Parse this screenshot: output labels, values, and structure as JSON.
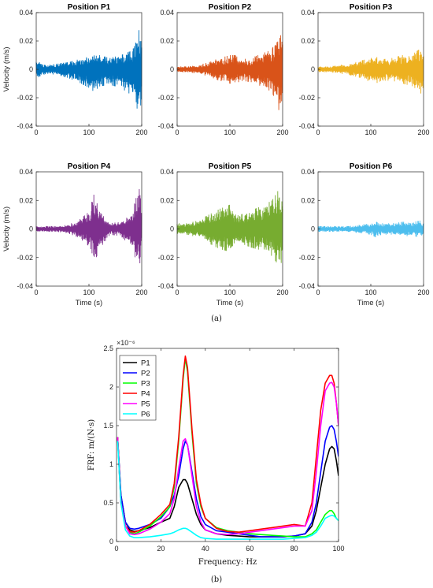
{
  "caption_a": "(a)",
  "caption_b": "(b)",
  "chart_data": [
    {
      "type": "line",
      "id": "p1",
      "title": "Position P1",
      "color": "#0072BD",
      "xlabel": "",
      "ylabel": "Velocity (m/s)",
      "xlim": [
        0,
        200
      ],
      "ylim": [
        -0.04,
        0.04
      ],
      "xticks": [
        "0",
        "100",
        "200"
      ],
      "yticks": [
        "0.04",
        "0.02",
        "0",
        "-0.02",
        "-0.04"
      ],
      "envelope": {
        "t": [
          0,
          20,
          40,
          60,
          80,
          100,
          110,
          120,
          140,
          160,
          180,
          195,
          200
        ],
        "upper": [
          0.006,
          0.003,
          0.004,
          0.005,
          0.007,
          0.009,
          0.013,
          0.01,
          0.008,
          0.01,
          0.013,
          0.028,
          0.02
        ],
        "lower": [
          -0.006,
          -0.003,
          -0.004,
          -0.006,
          -0.009,
          -0.013,
          -0.016,
          -0.012,
          -0.011,
          -0.013,
          -0.018,
          -0.031,
          -0.022
        ]
      }
    },
    {
      "type": "line",
      "id": "p2",
      "title": "Position P2",
      "color": "#D95319",
      "xlabel": "",
      "ylabel": "",
      "xlim": [
        0,
        200
      ],
      "ylim": [
        -0.04,
        0.04
      ],
      "xticks": [
        "0",
        "100",
        "200"
      ],
      "yticks": [
        "0.04",
        "0.02",
        "0",
        "-0.02",
        "-0.04"
      ],
      "envelope": {
        "t": [
          0,
          20,
          40,
          60,
          80,
          100,
          110,
          120,
          140,
          160,
          180,
          195,
          200
        ],
        "upper": [
          0.002,
          0.002,
          0.003,
          0.005,
          0.008,
          0.01,
          0.01,
          0.007,
          0.008,
          0.011,
          0.014,
          0.03,
          0.02
        ],
        "lower": [
          -0.002,
          -0.002,
          -0.003,
          -0.005,
          -0.008,
          -0.01,
          -0.011,
          -0.008,
          -0.009,
          -0.012,
          -0.016,
          -0.031,
          -0.022
        ]
      }
    },
    {
      "type": "line",
      "id": "p3",
      "title": "Position P3",
      "color": "#EDB120",
      "xlabel": "",
      "ylabel": "",
      "xlim": [
        0,
        200
      ],
      "ylim": [
        -0.04,
        0.04
      ],
      "xticks": [
        "0",
        "100",
        "200"
      ],
      "yticks": [
        "0.04",
        "0.02",
        "0",
        "-0.02",
        "-0.04"
      ],
      "envelope": {
        "t": [
          0,
          20,
          40,
          60,
          80,
          100,
          110,
          120,
          140,
          160,
          180,
          195,
          200
        ],
        "upper": [
          0.002,
          0.002,
          0.003,
          0.004,
          0.006,
          0.008,
          0.009,
          0.007,
          0.008,
          0.01,
          0.011,
          0.015,
          0.011
        ],
        "lower": [
          -0.002,
          -0.002,
          -0.003,
          -0.004,
          -0.006,
          -0.009,
          -0.01,
          -0.008,
          -0.008,
          -0.01,
          -0.012,
          -0.017,
          -0.012
        ]
      }
    },
    {
      "type": "line",
      "id": "p4",
      "title": "Position P4",
      "color": "#7E2F8E",
      "xlabel": "Time (s)",
      "ylabel": "Velocity (m/s)",
      "xlim": [
        0,
        200
      ],
      "ylim": [
        -0.04,
        0.04
      ],
      "xticks": [
        "0",
        "100",
        "200"
      ],
      "yticks": [
        "0.04",
        "0.02",
        "0",
        "-0.02",
        "-0.04"
      ],
      "envelope": {
        "t": [
          0,
          20,
          40,
          60,
          80,
          100,
          110,
          120,
          140,
          160,
          180,
          195,
          200
        ],
        "upper": [
          0.002,
          0.002,
          0.002,
          0.003,
          0.006,
          0.012,
          0.025,
          0.012,
          0.004,
          0.005,
          0.01,
          0.029,
          0.015
        ],
        "lower": [
          -0.002,
          -0.002,
          -0.002,
          -0.003,
          -0.006,
          -0.012,
          -0.024,
          -0.014,
          -0.004,
          -0.005,
          -0.012,
          -0.028,
          -0.015
        ]
      }
    },
    {
      "type": "line",
      "id": "p5",
      "title": "Position P5",
      "color": "#77AC30",
      "xlabel": "Time (s)",
      "ylabel": "",
      "xlim": [
        0,
        200
      ],
      "ylim": [
        -0.04,
        0.04
      ],
      "xticks": [
        "0",
        "100",
        "200"
      ],
      "yticks": [
        "0.04",
        "0.02",
        "0",
        "-0.02",
        "-0.04"
      ],
      "envelope": {
        "t": [
          0,
          20,
          40,
          60,
          80,
          100,
          110,
          120,
          140,
          160,
          180,
          195,
          200
        ],
        "upper": [
          0.004,
          0.004,
          0.006,
          0.01,
          0.014,
          0.017,
          0.012,
          0.01,
          0.013,
          0.016,
          0.02,
          0.029,
          0.02
        ],
        "lower": [
          -0.004,
          -0.004,
          -0.006,
          -0.01,
          -0.014,
          -0.016,
          -0.012,
          -0.01,
          -0.013,
          -0.015,
          -0.019,
          -0.027,
          -0.02
        ]
      }
    },
    {
      "type": "line",
      "id": "p6",
      "title": "Position P6",
      "color": "#4DBEEE",
      "xlabel": "Time (s)",
      "ylabel": "",
      "xlim": [
        0,
        200
      ],
      "ylim": [
        -0.04,
        0.04
      ],
      "xticks": [
        "0",
        "100",
        "200"
      ],
      "yticks": [
        "0.04",
        "0.02",
        "0",
        "-0.02",
        "-0.04"
      ],
      "envelope": {
        "t": [
          0,
          20,
          40,
          60,
          80,
          100,
          110,
          120,
          140,
          160,
          180,
          195,
          200
        ],
        "upper": [
          0.002,
          0.002,
          0.002,
          0.002,
          0.003,
          0.004,
          0.006,
          0.004,
          0.004,
          0.005,
          0.005,
          0.006,
          0.004
        ],
        "lower": [
          -0.002,
          -0.002,
          -0.002,
          -0.002,
          -0.003,
          -0.004,
          -0.006,
          -0.004,
          -0.004,
          -0.005,
          -0.005,
          -0.006,
          -0.004
        ]
      }
    },
    {
      "type": "line",
      "id": "frf",
      "xlabel": "Frequency: Hz",
      "ylabel": "FRF: m/(N·s)",
      "exponent_label": "×10⁻⁶",
      "xlim": [
        0,
        100
      ],
      "ylim": [
        0,
        2.5
      ],
      "xticks": [
        "0",
        "20",
        "40",
        "60",
        "80",
        "100"
      ],
      "yticks": [
        "0",
        "0.5",
        "1",
        "1.5",
        "2",
        "2.5"
      ],
      "legend_position": "top-left",
      "x": [
        0.5,
        2,
        4,
        6,
        8,
        10,
        15,
        20,
        24,
        26,
        28,
        30,
        31,
        32,
        34,
        36,
        38,
        40,
        45,
        50,
        55,
        60,
        65,
        70,
        75,
        80,
        85,
        88,
        90,
        92,
        94,
        96,
        97,
        98,
        99,
        100
      ],
      "series": [
        {
          "name": "P1",
          "color": "#000000",
          "values": [
            1.35,
            0.6,
            0.25,
            0.15,
            0.13,
            0.14,
            0.18,
            0.25,
            0.3,
            0.45,
            0.7,
            0.8,
            0.8,
            0.75,
            0.55,
            0.35,
            0.22,
            0.15,
            0.1,
            0.08,
            0.07,
            0.06,
            0.06,
            0.06,
            0.06,
            0.07,
            0.1,
            0.2,
            0.4,
            0.7,
            1.0,
            1.2,
            1.23,
            1.2,
            1.05,
            0.85
          ]
        },
        {
          "name": "P2",
          "color": "#0000FF",
          "values": [
            1.35,
            0.6,
            0.25,
            0.17,
            0.16,
            0.17,
            0.22,
            0.3,
            0.45,
            0.6,
            0.85,
            1.2,
            1.3,
            1.25,
            0.9,
            0.55,
            0.32,
            0.22,
            0.14,
            0.12,
            0.1,
            0.08,
            0.06,
            0.06,
            0.06,
            0.07,
            0.1,
            0.25,
            0.5,
            0.9,
            1.3,
            1.48,
            1.5,
            1.45,
            1.3,
            1.1
          ]
        },
        {
          "name": "P3",
          "color": "#00FF00",
          "values": [
            1.35,
            0.5,
            0.2,
            0.12,
            0.1,
            0.12,
            0.2,
            0.32,
            0.45,
            0.7,
            1.3,
            2.1,
            2.37,
            2.2,
            1.4,
            0.75,
            0.45,
            0.3,
            0.18,
            0.14,
            0.12,
            0.1,
            0.09,
            0.08,
            0.07,
            0.06,
            0.06,
            0.1,
            0.15,
            0.25,
            0.35,
            0.4,
            0.4,
            0.36,
            0.3,
            0.27
          ]
        },
        {
          "name": "P4",
          "color": "#FF0000",
          "values": [
            1.35,
            0.5,
            0.2,
            0.13,
            0.12,
            0.14,
            0.22,
            0.35,
            0.48,
            0.75,
            1.35,
            2.15,
            2.4,
            2.25,
            1.45,
            0.8,
            0.48,
            0.3,
            0.17,
            0.13,
            0.12,
            0.14,
            0.16,
            0.18,
            0.2,
            0.22,
            0.2,
            0.5,
            1.1,
            1.7,
            2.05,
            2.15,
            2.15,
            2.05,
            1.8,
            1.5
          ]
        },
        {
          "name": "P5",
          "color": "#FF00FF",
          "values": [
            1.35,
            0.5,
            0.2,
            0.1,
            0.09,
            0.1,
            0.16,
            0.25,
            0.36,
            0.55,
            0.95,
            1.3,
            1.33,
            1.25,
            0.85,
            0.45,
            0.25,
            0.15,
            0.1,
            0.09,
            0.1,
            0.12,
            0.14,
            0.16,
            0.18,
            0.2,
            0.2,
            0.4,
            0.9,
            1.5,
            1.95,
            2.05,
            2.06,
            2.0,
            1.8,
            1.5
          ]
        },
        {
          "name": "P6",
          "color": "#00FFFF",
          "values": [
            1.3,
            0.5,
            0.15,
            0.07,
            0.05,
            0.05,
            0.06,
            0.08,
            0.1,
            0.12,
            0.15,
            0.17,
            0.17,
            0.16,
            0.12,
            0.08,
            0.05,
            0.04,
            0.03,
            0.03,
            0.03,
            0.03,
            0.03,
            0.03,
            0.03,
            0.04,
            0.05,
            0.08,
            0.12,
            0.2,
            0.3,
            0.33,
            0.34,
            0.33,
            0.3,
            0.27
          ]
        }
      ]
    }
  ]
}
